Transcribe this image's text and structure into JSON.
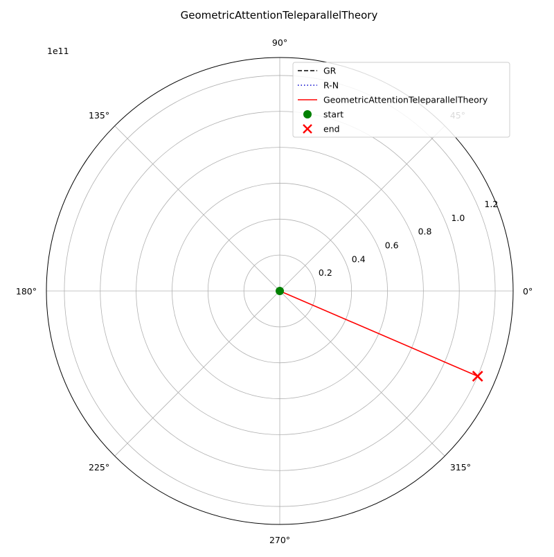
{
  "chart_data": {
    "type": "polar-line",
    "title": "GeometricAttentionTeleparallelTheory",
    "r_scale_label": "1e11",
    "r_ticks": [
      "0.2",
      "0.4",
      "0.6",
      "0.8",
      "1.0",
      "1.2"
    ],
    "r_tick_values": [
      0.2,
      0.4,
      0.6,
      0.8,
      1.0,
      1.2
    ],
    "r_max": 1.3,
    "theta_ticks": [
      "0°",
      "45°",
      "90°",
      "135°",
      "180°",
      "225°",
      "270°",
      "315°"
    ],
    "theta_tick_values": [
      0,
      45,
      90,
      135,
      180,
      225,
      270,
      315
    ],
    "grid": true,
    "legend_position": "top-right",
    "legend": [
      {
        "label": "GR",
        "style": "dashed-line",
        "color": "#000000"
      },
      {
        "label": "R-N",
        "style": "dotted-line",
        "color": "#0000cc"
      },
      {
        "label": "GeometricAttentionTeleparallelTheory",
        "style": "solid-line",
        "color": "#ff0000"
      },
      {
        "label": "start",
        "style": "circle-marker",
        "color": "#008000"
      },
      {
        "label": "end",
        "style": "x-marker",
        "color": "#ff0000"
      }
    ],
    "series": [
      {
        "name": "GeometricAttentionTeleparallelTheory",
        "color": "#ff0000",
        "points": [
          {
            "theta": 0,
            "r": 0
          },
          {
            "theta": -23.3,
            "r": 1.2
          }
        ]
      }
    ],
    "markers": [
      {
        "name": "start",
        "theta": 0,
        "r": 0,
        "color": "#008000"
      },
      {
        "name": "end",
        "theta": -23.3,
        "r": 1.2,
        "color": "#ff0000"
      }
    ]
  }
}
